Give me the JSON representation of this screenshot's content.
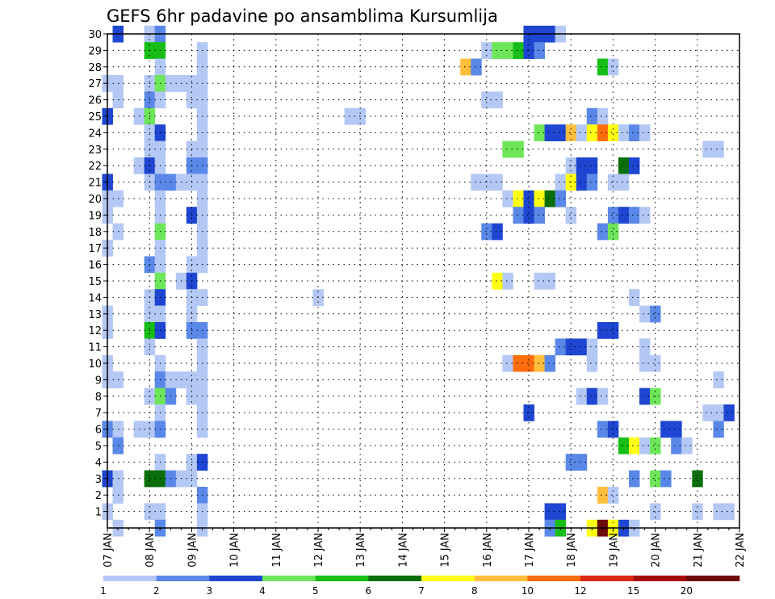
{
  "chart_data": {
    "type": "heatmap",
    "title": "GEFS 6hr padavine po ansamblima Kursumlija",
    "x_tick_labels": [
      "07 JAN",
      "08 JAN",
      "09 JAN",
      "10 JAN",
      "11 JAN",
      "12 JAN",
      "13 JAN",
      "14 JAN",
      "15 JAN",
      "16 JAN",
      "17 JAN",
      "18 JAN",
      "19 JAN",
      "20 JAN",
      "21 JAN",
      "22 JAN"
    ],
    "x_range_days": [
      7,
      22
    ],
    "y_tick_labels": [
      "1",
      "2",
      "3",
      "4",
      "5",
      "6",
      "7",
      "8",
      "9",
      "10",
      "11",
      "12",
      "13",
      "14",
      "15",
      "16",
      "17",
      "18",
      "19",
      "20",
      "21",
      "22",
      "23",
      "24",
      "25",
      "26",
      "27",
      "28",
      "29",
      "30"
    ],
    "y_range": [
      0,
      30
    ],
    "grid": true,
    "colorbar": {
      "colors": [
        "#b4c8f5",
        "#5a88e8",
        "#1e46d2",
        "#6ee65a",
        "#16be16",
        "#0a6e0a",
        "#ffff14",
        "#ffbe3c",
        "#ff6e0a",
        "#e12814",
        "#a50a0a",
        "#6e0a0a"
      ],
      "labels": [
        "1",
        "2",
        "3",
        "4",
        "5",
        "6",
        "7",
        "8",
        "10",
        "12",
        "15",
        "20"
      ]
    },
    "level_colors": {
      "1": "#b4c8f5",
      "2": "#5a88e8",
      "3": "#1e46d2",
      "4": "#6ee65a",
      "5": "#16be16",
      "6": "#0a6e0a",
      "7": "#ffff14",
      "8": "#ffbe3c",
      "10": "#ff6e0a",
      "12": "#e12814",
      "15": "#a50a0a",
      "20": "#6e0a0a"
    },
    "cell_hours": 6,
    "cells": [
      {
        "day": 7.25,
        "m": 30,
        "v": 3
      },
      {
        "day": 8.0,
        "m": 30,
        "v": 1
      },
      {
        "day": 8.25,
        "m": 30,
        "v": 2
      },
      {
        "day": 17.0,
        "m": 30,
        "v": 3
      },
      {
        "day": 17.25,
        "m": 30,
        "v": 3
      },
      {
        "day": 17.5,
        "m": 30,
        "v": 3
      },
      {
        "day": 17.75,
        "m": 30,
        "v": 1
      },
      {
        "day": 8.0,
        "m": 29,
        "v": 5
      },
      {
        "day": 8.25,
        "m": 29,
        "v": 5
      },
      {
        "day": 9.25,
        "m": 29,
        "v": 1
      },
      {
        "day": 16.0,
        "m": 29,
        "v": 1
      },
      {
        "day": 16.25,
        "m": 29,
        "v": 4
      },
      {
        "day": 16.5,
        "m": 29,
        "v": 4
      },
      {
        "day": 16.75,
        "m": 29,
        "v": 5
      },
      {
        "day": 17.0,
        "m": 29,
        "v": 3
      },
      {
        "day": 17.25,
        "m": 29,
        "v": 2
      },
      {
        "day": 8.25,
        "m": 28,
        "v": 1
      },
      {
        "day": 9.25,
        "m": 28,
        "v": 1
      },
      {
        "day": 15.5,
        "m": 28,
        "v": 8
      },
      {
        "day": 15.75,
        "m": 28,
        "v": 2
      },
      {
        "day": 18.75,
        "m": 28,
        "v": 5
      },
      {
        "day": 19.0,
        "m": 28,
        "v": 1
      },
      {
        "day": 7.0,
        "m": 27,
        "v": 1
      },
      {
        "day": 7.25,
        "m": 27,
        "v": 1
      },
      {
        "day": 8.0,
        "m": 27,
        "v": 1
      },
      {
        "day": 8.25,
        "m": 27,
        "v": 4
      },
      {
        "day": 8.5,
        "m": 27,
        "v": 1
      },
      {
        "day": 8.75,
        "m": 27,
        "v": 1
      },
      {
        "day": 9.0,
        "m": 27,
        "v": 1
      },
      {
        "day": 9.25,
        "m": 27,
        "v": 1
      },
      {
        "day": 7.25,
        "m": 26,
        "v": 1
      },
      {
        "day": 8.0,
        "m": 26,
        "v": 2
      },
      {
        "day": 8.25,
        "m": 26,
        "v": 1
      },
      {
        "day": 9.0,
        "m": 26,
        "v": 1
      },
      {
        "day": 9.25,
        "m": 26,
        "v": 1
      },
      {
        "day": 16.0,
        "m": 26,
        "v": 1
      },
      {
        "day": 16.25,
        "m": 26,
        "v": 1
      },
      {
        "day": 7.0,
        "m": 25,
        "v": 3
      },
      {
        "day": 7.75,
        "m": 25,
        "v": 1
      },
      {
        "day": 8.0,
        "m": 25,
        "v": 4
      },
      {
        "day": 9.25,
        "m": 25,
        "v": 1
      },
      {
        "day": 12.75,
        "m": 25,
        "v": 1
      },
      {
        "day": 13.0,
        "m": 25,
        "v": 1
      },
      {
        "day": 18.5,
        "m": 25,
        "v": 2
      },
      {
        "day": 18.75,
        "m": 25,
        "v": 1
      },
      {
        "day": 8.0,
        "m": 24,
        "v": 1
      },
      {
        "day": 8.25,
        "m": 24,
        "v": 3
      },
      {
        "day": 9.25,
        "m": 24,
        "v": 1
      },
      {
        "day": 17.25,
        "m": 24,
        "v": 4
      },
      {
        "day": 17.5,
        "m": 24,
        "v": 3
      },
      {
        "day": 17.75,
        "m": 24,
        "v": 3
      },
      {
        "day": 18.0,
        "m": 24,
        "v": 8
      },
      {
        "day": 18.25,
        "m": 24,
        "v": 1
      },
      {
        "day": 18.5,
        "m": 24,
        "v": 7
      },
      {
        "day": 18.75,
        "m": 24,
        "v": 10
      },
      {
        "day": 19.0,
        "m": 24,
        "v": 7
      },
      {
        "day": 19.25,
        "m": 24,
        "v": 1
      },
      {
        "day": 19.5,
        "m": 24,
        "v": 2
      },
      {
        "day": 19.75,
        "m": 24,
        "v": 1
      },
      {
        "day": 8.0,
        "m": 23,
        "v": 1
      },
      {
        "day": 8.25,
        "m": 23,
        "v": 1
      },
      {
        "day": 9.0,
        "m": 23,
        "v": 1
      },
      {
        "day": 9.25,
        "m": 23,
        "v": 1
      },
      {
        "day": 16.5,
        "m": 23,
        "v": 4
      },
      {
        "day": 16.75,
        "m": 23,
        "v": 4
      },
      {
        "day": 21.25,
        "m": 23,
        "v": 1
      },
      {
        "day": 21.5,
        "m": 23,
        "v": 1
      },
      {
        "day": 7.75,
        "m": 22,
        "v": 1
      },
      {
        "day": 8.0,
        "m": 22,
        "v": 3
      },
      {
        "day": 8.25,
        "m": 22,
        "v": 1
      },
      {
        "day": 9.0,
        "m": 22,
        "v": 2
      },
      {
        "day": 9.25,
        "m": 22,
        "v": 2
      },
      {
        "day": 18.0,
        "m": 22,
        "v": 1
      },
      {
        "day": 18.25,
        "m": 22,
        "v": 3
      },
      {
        "day": 18.5,
        "m": 22,
        "v": 3
      },
      {
        "day": 19.25,
        "m": 22,
        "v": 6
      },
      {
        "day": 19.5,
        "m": 22,
        "v": 3
      },
      {
        "day": 7.0,
        "m": 21,
        "v": 3
      },
      {
        "day": 8.0,
        "m": 21,
        "v": 1
      },
      {
        "day": 8.25,
        "m": 21,
        "v": 2
      },
      {
        "day": 8.5,
        "m": 21,
        "v": 2
      },
      {
        "day": 8.75,
        "m": 21,
        "v": 1
      },
      {
        "day": 9.0,
        "m": 21,
        "v": 1
      },
      {
        "day": 9.25,
        "m": 21,
        "v": 1
      },
      {
        "day": 15.75,
        "m": 21,
        "v": 1
      },
      {
        "day": 16.0,
        "m": 21,
        "v": 1
      },
      {
        "day": 16.25,
        "m": 21,
        "v": 1
      },
      {
        "day": 17.75,
        "m": 21,
        "v": 1
      },
      {
        "day": 18.0,
        "m": 21,
        "v": 7
      },
      {
        "day": 18.25,
        "m": 21,
        "v": 3
      },
      {
        "day": 18.5,
        "m": 21,
        "v": 2
      },
      {
        "day": 19.0,
        "m": 21,
        "v": 1
      },
      {
        "day": 19.25,
        "m": 21,
        "v": 1
      },
      {
        "day": 7.0,
        "m": 20,
        "v": 1
      },
      {
        "day": 7.25,
        "m": 20,
        "v": 1
      },
      {
        "day": 8.25,
        "m": 20,
        "v": 1
      },
      {
        "day": 9.25,
        "m": 20,
        "v": 1
      },
      {
        "day": 16.5,
        "m": 20,
        "v": 1
      },
      {
        "day": 16.75,
        "m": 20,
        "v": 7
      },
      {
        "day": 17.0,
        "m": 20,
        "v": 3
      },
      {
        "day": 17.25,
        "m": 20,
        "v": 7
      },
      {
        "day": 17.5,
        "m": 20,
        "v": 6
      },
      {
        "day": 17.75,
        "m": 20,
        "v": 2
      },
      {
        "day": 7.0,
        "m": 19,
        "v": 1
      },
      {
        "day": 8.25,
        "m": 19,
        "v": 1
      },
      {
        "day": 9.0,
        "m": 19,
        "v": 3
      },
      {
        "day": 9.25,
        "m": 19,
        "v": 1
      },
      {
        "day": 16.75,
        "m": 19,
        "v": 2
      },
      {
        "day": 17.0,
        "m": 19,
        "v": 3
      },
      {
        "day": 17.25,
        "m": 19,
        "v": 2
      },
      {
        "day": 18.0,
        "m": 19,
        "v": 1
      },
      {
        "day": 19.0,
        "m": 19,
        "v": 2
      },
      {
        "day": 19.25,
        "m": 19,
        "v": 3
      },
      {
        "day": 19.5,
        "m": 19,
        "v": 2
      },
      {
        "day": 19.75,
        "m": 19,
        "v": 1
      },
      {
        "day": 7.25,
        "m": 18,
        "v": 1
      },
      {
        "day": 8.25,
        "m": 18,
        "v": 4
      },
      {
        "day": 9.25,
        "m": 18,
        "v": 1
      },
      {
        "day": 16.0,
        "m": 18,
        "v": 2
      },
      {
        "day": 16.25,
        "m": 18,
        "v": 3
      },
      {
        "day": 18.75,
        "m": 18,
        "v": 2
      },
      {
        "day": 19.0,
        "m": 18,
        "v": 4
      },
      {
        "day": 7.0,
        "m": 17,
        "v": 1
      },
      {
        "day": 8.25,
        "m": 17,
        "v": 1
      },
      {
        "day": 9.25,
        "m": 17,
        "v": 1
      },
      {
        "day": 8.0,
        "m": 16,
        "v": 2
      },
      {
        "day": 8.25,
        "m": 16,
        "v": 1
      },
      {
        "day": 9.0,
        "m": 16,
        "v": 1
      },
      {
        "day": 9.25,
        "m": 16,
        "v": 1
      },
      {
        "day": 8.25,
        "m": 15,
        "v": 4
      },
      {
        "day": 8.75,
        "m": 15,
        "v": 1
      },
      {
        "day": 9.0,
        "m": 15,
        "v": 3
      },
      {
        "day": 16.25,
        "m": 15,
        "v": 7
      },
      {
        "day": 16.5,
        "m": 15,
        "v": 1
      },
      {
        "day": 17.25,
        "m": 15,
        "v": 1
      },
      {
        "day": 17.5,
        "m": 15,
        "v": 1
      },
      {
        "day": 8.0,
        "m": 14,
        "v": 1
      },
      {
        "day": 8.25,
        "m": 14,
        "v": 3
      },
      {
        "day": 9.0,
        "m": 14,
        "v": 1
      },
      {
        "day": 9.25,
        "m": 14,
        "v": 1
      },
      {
        "day": 12.0,
        "m": 14,
        "v": 1
      },
      {
        "day": 19.5,
        "m": 14,
        "v": 1
      },
      {
        "day": 7.0,
        "m": 13,
        "v": 1
      },
      {
        "day": 8.0,
        "m": 13,
        "v": 1
      },
      {
        "day": 8.25,
        "m": 13,
        "v": 1
      },
      {
        "day": 9.0,
        "m": 13,
        "v": 1
      },
      {
        "day": 19.75,
        "m": 13,
        "v": 1
      },
      {
        "day": 20.0,
        "m": 13,
        "v": 2
      },
      {
        "day": 7.0,
        "m": 12,
        "v": 1
      },
      {
        "day": 8.0,
        "m": 12,
        "v": 5
      },
      {
        "day": 8.25,
        "m": 12,
        "v": 3
      },
      {
        "day": 9.0,
        "m": 12,
        "v": 2
      },
      {
        "day": 9.25,
        "m": 12,
        "v": 2
      },
      {
        "day": 18.75,
        "m": 12,
        "v": 3
      },
      {
        "day": 19.0,
        "m": 12,
        "v": 3
      },
      {
        "day": 8.0,
        "m": 11,
        "v": 1
      },
      {
        "day": 9.25,
        "m": 11,
        "v": 1
      },
      {
        "day": 17.75,
        "m": 11,
        "v": 2
      },
      {
        "day": 18.0,
        "m": 11,
        "v": 3
      },
      {
        "day": 18.25,
        "m": 11,
        "v": 3
      },
      {
        "day": 18.5,
        "m": 11,
        "v": 1
      },
      {
        "day": 19.75,
        "m": 11,
        "v": 1
      },
      {
        "day": 7.0,
        "m": 10,
        "v": 1
      },
      {
        "day": 8.25,
        "m": 10,
        "v": 1
      },
      {
        "day": 9.25,
        "m": 10,
        "v": 1
      },
      {
        "day": 16.5,
        "m": 10,
        "v": 1
      },
      {
        "day": 16.75,
        "m": 10,
        "v": 10
      },
      {
        "day": 17.0,
        "m": 10,
        "v": 10
      },
      {
        "day": 17.25,
        "m": 10,
        "v": 8
      },
      {
        "day": 17.5,
        "m": 10,
        "v": 2
      },
      {
        "day": 18.5,
        "m": 10,
        "v": 1
      },
      {
        "day": 19.75,
        "m": 10,
        "v": 1
      },
      {
        "day": 20.0,
        "m": 10,
        "v": 1
      },
      {
        "day": 7.0,
        "m": 9,
        "v": 1
      },
      {
        "day": 7.25,
        "m": 9,
        "v": 1
      },
      {
        "day": 8.25,
        "m": 9,
        "v": 2
      },
      {
        "day": 8.5,
        "m": 9,
        "v": 1
      },
      {
        "day": 8.75,
        "m": 9,
        "v": 1
      },
      {
        "day": 9.0,
        "m": 9,
        "v": 1
      },
      {
        "day": 9.25,
        "m": 9,
        "v": 1
      },
      {
        "day": 21.5,
        "m": 9,
        "v": 1
      },
      {
        "day": 8.0,
        "m": 8,
        "v": 1
      },
      {
        "day": 8.25,
        "m": 8,
        "v": 4
      },
      {
        "day": 8.5,
        "m": 8,
        "v": 2
      },
      {
        "day": 9.0,
        "m": 8,
        "v": 1
      },
      {
        "day": 9.25,
        "m": 8,
        "v": 1
      },
      {
        "day": 18.25,
        "m": 8,
        "v": 1
      },
      {
        "day": 18.5,
        "m": 8,
        "v": 3
      },
      {
        "day": 18.75,
        "m": 8,
        "v": 1
      },
      {
        "day": 19.75,
        "m": 8,
        "v": 3
      },
      {
        "day": 20.0,
        "m": 8,
        "v": 4
      },
      {
        "day": 8.25,
        "m": 7,
        "v": 1
      },
      {
        "day": 9.25,
        "m": 7,
        "v": 1
      },
      {
        "day": 17.0,
        "m": 7,
        "v": 3
      },
      {
        "day": 21.25,
        "m": 7,
        "v": 1
      },
      {
        "day": 21.5,
        "m": 7,
        "v": 1
      },
      {
        "day": 21.75,
        "m": 7,
        "v": 3
      },
      {
        "day": 7.0,
        "m": 6,
        "v": 2
      },
      {
        "day": 7.25,
        "m": 6,
        "v": 1
      },
      {
        "day": 7.75,
        "m": 6,
        "v": 1
      },
      {
        "day": 8.0,
        "m": 6,
        "v": 1
      },
      {
        "day": 8.25,
        "m": 6,
        "v": 2
      },
      {
        "day": 9.25,
        "m": 6,
        "v": 1
      },
      {
        "day": 18.75,
        "m": 6,
        "v": 2
      },
      {
        "day": 19.0,
        "m": 6,
        "v": 3
      },
      {
        "day": 20.25,
        "m": 6,
        "v": 3
      },
      {
        "day": 20.5,
        "m": 6,
        "v": 3
      },
      {
        "day": 21.5,
        "m": 6,
        "v": 2
      },
      {
        "day": 7.25,
        "m": 5,
        "v": 2
      },
      {
        "day": 19.25,
        "m": 5,
        "v": 5
      },
      {
        "day": 19.5,
        "m": 5,
        "v": 7
      },
      {
        "day": 19.75,
        "m": 5,
        "v": 1
      },
      {
        "day": 20.0,
        "m": 5,
        "v": 4
      },
      {
        "day": 20.5,
        "m": 5,
        "v": 2
      },
      {
        "day": 20.75,
        "m": 5,
        "v": 1
      },
      {
        "day": 8.25,
        "m": 4,
        "v": 1
      },
      {
        "day": 9.0,
        "m": 4,
        "v": 1
      },
      {
        "day": 9.25,
        "m": 4,
        "v": 3
      },
      {
        "day": 18.0,
        "m": 4,
        "v": 2
      },
      {
        "day": 18.25,
        "m": 4,
        "v": 2
      },
      {
        "day": 7.0,
        "m": 3,
        "v": 3
      },
      {
        "day": 7.25,
        "m": 3,
        "v": 1
      },
      {
        "day": 8.0,
        "m": 3,
        "v": 6
      },
      {
        "day": 8.25,
        "m": 3,
        "v": 6
      },
      {
        "day": 8.5,
        "m": 3,
        "v": 2
      },
      {
        "day": 8.75,
        "m": 3,
        "v": 1
      },
      {
        "day": 9.0,
        "m": 3,
        "v": 1
      },
      {
        "day": 19.5,
        "m": 3,
        "v": 2
      },
      {
        "day": 20.0,
        "m": 3,
        "v": 4
      },
      {
        "day": 20.25,
        "m": 3,
        "v": 2
      },
      {
        "day": 21.0,
        "m": 3,
        "v": 6
      },
      {
        "day": 7.25,
        "m": 2,
        "v": 1
      },
      {
        "day": 9.25,
        "m": 2,
        "v": 2
      },
      {
        "day": 18.75,
        "m": 2,
        "v": 8
      },
      {
        "day": 19.0,
        "m": 2,
        "v": 1
      },
      {
        "day": 7.0,
        "m": 1,
        "v": 1
      },
      {
        "day": 8.0,
        "m": 1,
        "v": 1
      },
      {
        "day": 8.25,
        "m": 1,
        "v": 1
      },
      {
        "day": 9.25,
        "m": 1,
        "v": 1
      },
      {
        "day": 17.5,
        "m": 1,
        "v": 3
      },
      {
        "day": 17.75,
        "m": 1,
        "v": 3
      },
      {
        "day": 20.0,
        "m": 1,
        "v": 1
      },
      {
        "day": 21.0,
        "m": 1,
        "v": 1
      },
      {
        "day": 21.5,
        "m": 1,
        "v": 1
      },
      {
        "day": 21.75,
        "m": 1,
        "v": 1
      },
      {
        "day": 7.25,
        "m": 0,
        "v": 1
      },
      {
        "day": 8.25,
        "m": 0,
        "v": 2
      },
      {
        "day": 9.25,
        "m": 0,
        "v": 1
      },
      {
        "day": 17.5,
        "m": 0,
        "v": 2
      },
      {
        "day": 17.75,
        "m": 0,
        "v": 5
      },
      {
        "day": 18.5,
        "m": 0,
        "v": 7
      },
      {
        "day": 18.75,
        "m": 0,
        "v": 20
      },
      {
        "day": 19.0,
        "m": 0,
        "v": 7
      },
      {
        "day": 19.25,
        "m": 0,
        "v": 3
      },
      {
        "day": 19.5,
        "m": 0,
        "v": 1
      }
    ]
  }
}
